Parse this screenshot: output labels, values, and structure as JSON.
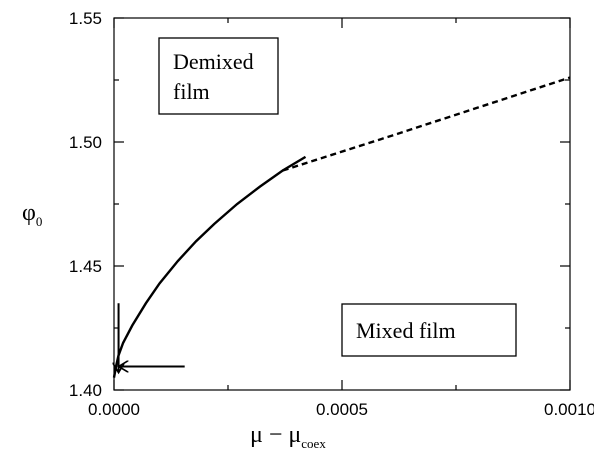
{
  "chart_data": {
    "type": "line",
    "title": "",
    "xlabel": {
      "main": "μ − μ",
      "sub": "coex"
    },
    "ylabel": {
      "main": "φ",
      "sub": "0"
    },
    "xlim": [
      0,
      0.001
    ],
    "ylim": [
      1.4,
      1.55
    ],
    "x_ticks": [
      {
        "value": 0,
        "label": "0.0000"
      },
      {
        "value": 0.0005,
        "label": "0.0005"
      },
      {
        "value": 0.001,
        "label": "0.0010"
      }
    ],
    "y_ticks": [
      {
        "value": 1.4,
        "label": "1.40"
      },
      {
        "value": 1.45,
        "label": "1.45"
      },
      {
        "value": 1.5,
        "label": "1.50"
      },
      {
        "value": 1.55,
        "label": "1.55"
      }
    ],
    "grid": false,
    "series": [
      {
        "style": "solid",
        "points": [
          [
            0.0,
            1.405
          ],
          [
            5e-06,
            1.41
          ],
          [
            1e-05,
            1.414
          ],
          [
            2e-05,
            1.419
          ],
          [
            4e-05,
            1.426
          ],
          [
            7e-05,
            1.435
          ],
          [
            0.0001,
            1.443
          ],
          [
            0.00014,
            1.452
          ],
          [
            0.00018,
            1.46
          ],
          [
            0.00022,
            1.467
          ],
          [
            0.00027,
            1.475
          ],
          [
            0.00032,
            1.482
          ],
          [
            0.00037,
            1.4885
          ],
          [
            0.00042,
            1.494
          ]
        ]
      },
      {
        "style": "dashed",
        "points": [
          [
            0.00037,
            1.4885
          ],
          [
            0.0006,
            1.502
          ],
          [
            0.0008,
            1.514
          ],
          [
            0.001,
            1.526
          ]
        ]
      }
    ],
    "annotations": [
      {
        "lines": [
          "Demixed",
          "film"
        ],
        "position": "upper-left"
      },
      {
        "lines": [
          "Mixed film"
        ],
        "position": "lower-right"
      }
    ],
    "arrows": [
      {
        "from": [
          1e-05,
          1.435
        ],
        "to": [
          1e-05,
          1.407
        ]
      },
      {
        "from": [
          0.000155,
          1.4095
        ],
        "to": [
          1e-05,
          1.4095
        ]
      }
    ]
  }
}
